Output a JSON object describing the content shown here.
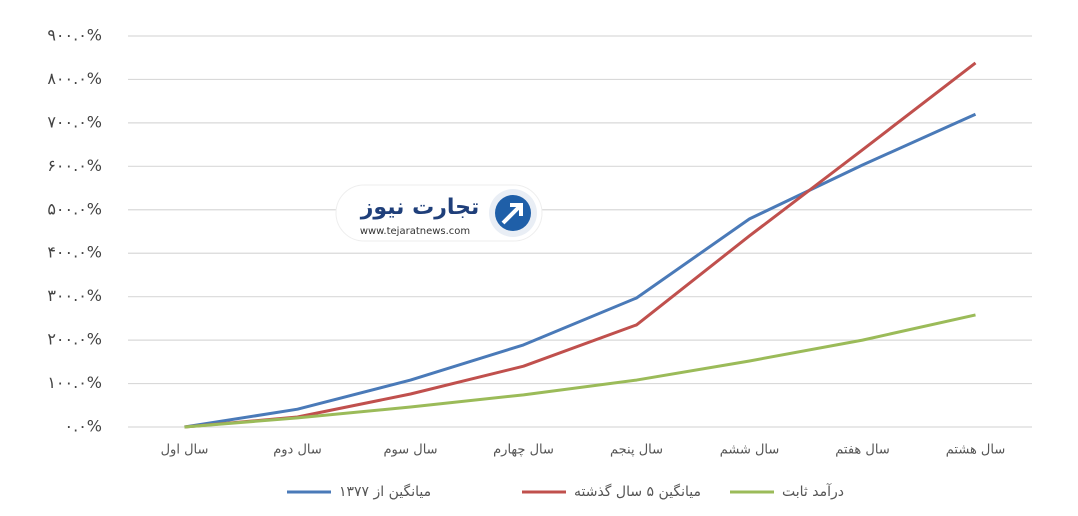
{
  "chart_data": {
    "type": "line",
    "categories": [
      "سال اول",
      "سال دوم",
      "سال سوم",
      "سال چهارم",
      "سال پنجم",
      "سال ششم",
      "سال هفتم",
      "سال هشتم"
    ],
    "series": [
      {
        "name": "میانگین از ۱۳۷۷",
        "color": "#4a7ab8",
        "values": [
          0,
          41,
          108,
          189,
          297,
          479,
          603,
          720
        ]
      },
      {
        "name": "میانگین ۵ سال گذشته",
        "color": "#c0504d",
        "values": [
          0,
          23,
          76,
          140,
          235,
          440,
          638,
          838
        ]
      },
      {
        "name": "درآمد ثابت",
        "color": "#9bbb59",
        "values": [
          0,
          21,
          46,
          74,
          108,
          152,
          200,
          258
        ]
      }
    ],
    "ylim": [
      0,
      900
    ],
    "yticks": [
      {
        "value": 0,
        "label": "۰.۰%"
      },
      {
        "value": 100,
        "label": "۱۰۰.۰%"
      },
      {
        "value": 200,
        "label": "۲۰۰.۰%"
      },
      {
        "value": 300,
        "label": "۳۰۰.۰%"
      },
      {
        "value": 400,
        "label": "۴۰۰.۰%"
      },
      {
        "value": 500,
        "label": "۵۰۰.۰%"
      },
      {
        "value": 600,
        "label": "۶۰۰.۰%"
      },
      {
        "value": 700,
        "label": "۷۰۰.۰%"
      },
      {
        "value": 800,
        "label": "۸۰۰.۰%"
      },
      {
        "value": 900,
        "label": "۹۰۰.۰%"
      }
    ],
    "grid": true,
    "legend": "bottom"
  },
  "watermark": {
    "title": "تجارت نیوز",
    "url": "www.tejaratnews.com"
  }
}
